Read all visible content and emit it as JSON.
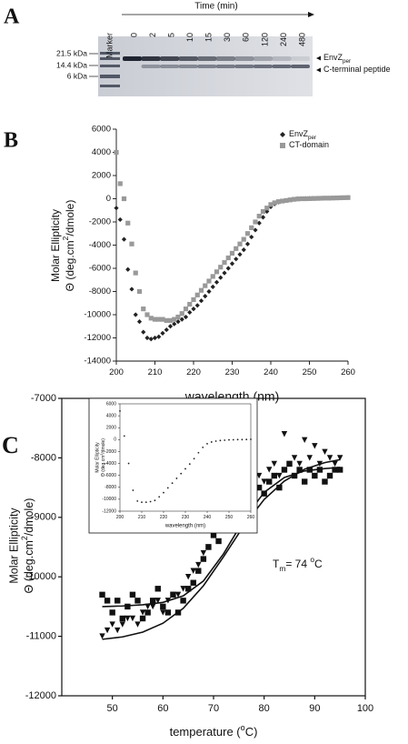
{
  "gel": {
    "panel_label": "A",
    "lane_header": "Marker",
    "time_label": "Time (min)",
    "lanes": [
      0,
      2,
      5,
      10,
      15,
      30,
      60,
      120,
      240,
      480
    ],
    "size_markers": [
      "21.5 kDa",
      "14.4 kDa",
      "6 kDa"
    ],
    "bands": [
      {
        "name": "EnvZ",
        "name_sub": "per"
      },
      {
        "name": "C-terminal peptide"
      }
    ]
  },
  "chart_data": [
    {
      "type": "scatter",
      "panel_label": "B",
      "x": [
        200,
        201,
        202,
        203,
        204,
        205,
        206,
        207,
        208,
        209,
        210,
        211,
        212,
        213,
        214,
        215,
        216,
        217,
        218,
        219,
        220,
        221,
        222,
        223,
        224,
        225,
        226,
        227,
        228,
        229,
        230,
        231,
        232,
        233,
        234,
        235,
        236,
        237,
        238,
        239,
        240,
        241,
        242,
        243,
        244,
        245,
        246,
        247,
        248,
        249,
        250,
        251,
        252,
        253,
        254,
        255,
        256,
        257,
        258,
        259,
        260
      ],
      "series": [
        {
          "name": "EnvZ",
          "name_sub": "per",
          "color": "#222222",
          "marker": "diamond",
          "values": [
            -800,
            -1800,
            -3500,
            -6100,
            -7800,
            -10000,
            -10600,
            -11500,
            -12000,
            -12100,
            -12000,
            -11900,
            -11600,
            -11300,
            -11000,
            -10800,
            -10600,
            -10400,
            -10200,
            -9800,
            -9500,
            -9200,
            -8800,
            -8400,
            -8000,
            -7600,
            -7200,
            -6800,
            -6400,
            -6000,
            -5600,
            -5200,
            -4800,
            -4400,
            -3900,
            -3300,
            -2700,
            -2100,
            -1600,
            -1100,
            -700,
            -450,
            -300,
            -200,
            -150,
            -100,
            -50,
            0,
            0,
            20,
            30,
            40,
            50,
            50,
            60,
            60,
            70,
            80,
            80,
            90,
            100
          ]
        },
        {
          "name": "CT-domain",
          "color": "#999999",
          "marker": "square",
          "values": [
            4000,
            1300,
            0,
            -2100,
            -3900,
            -6400,
            -8000,
            -9500,
            -10000,
            -10300,
            -10400,
            -10400,
            -10400,
            -10500,
            -10500,
            -10400,
            -10200,
            -9900,
            -9500,
            -9100,
            -8700,
            -8300,
            -7900,
            -7500,
            -7100,
            -6700,
            -6300,
            -5900,
            -5500,
            -5100,
            -4700,
            -4300,
            -3900,
            -3500,
            -3000,
            -2500,
            -2000,
            -1500,
            -1100,
            -800,
            -500,
            -350,
            -250,
            -200,
            -150,
            -100,
            -50,
            -20,
            0,
            0,
            10,
            20,
            30,
            40,
            50,
            50,
            60,
            70,
            80,
            90,
            100
          ]
        }
      ],
      "xlabel": "wavelength (nm)",
      "ylabel": {
        "line1": "Molar Ellipticity",
        "line2": "Θ (deg.cm",
        "sup": "2",
        "line2_end": "/dmole)"
      },
      "xlim": [
        200,
        260
      ],
      "ylim": [
        -14000,
        6000
      ],
      "xticks": [
        200,
        210,
        220,
        230,
        240,
        250,
        260
      ],
      "yticks": [
        -14000,
        -12000,
        -10000,
        -8000,
        -6000,
        -4000,
        -2000,
        0,
        2000,
        4000,
        6000
      ],
      "legend": "upper right"
    },
    {
      "type": "scatter",
      "panel_label": "C",
      "x": [
        48,
        49,
        50,
        51,
        52,
        53,
        54,
        55,
        56,
        57,
        58,
        59,
        60,
        61,
        62,
        63,
        64,
        65,
        66,
        67,
        68,
        69,
        70,
        71,
        72,
        73,
        74,
        75,
        76,
        77,
        78,
        79,
        80,
        81,
        82,
        83,
        84,
        85,
        86,
        87,
        88,
        89,
        90,
        91,
        92,
        93,
        94,
        95
      ],
      "series": [
        {
          "color": "#111111",
          "marker": "square",
          "values": [
            -10300,
            -10400,
            -10600,
            -10400,
            -10700,
            -10500,
            -10300,
            -10400,
            -10700,
            -10600,
            -10400,
            -10200,
            -10500,
            -10600,
            -10300,
            -10600,
            -10400,
            -10200,
            -10100,
            -9900,
            -9700,
            -9500,
            -9300,
            -9400,
            -9100,
            -9200,
            -8900,
            -9000,
            -8800,
            -8700,
            -8900,
            -8500,
            -8600,
            -8400,
            -8300,
            -8500,
            -8200,
            -8100,
            -8300,
            -8200,
            -8400,
            -8200,
            -8300,
            -8200,
            -8400,
            -8300,
            -8200,
            -8200
          ]
        },
        {
          "color": "#111111",
          "marker": "triangle-down",
          "values": [
            -11000,
            -10900,
            -10800,
            -10900,
            -10800,
            -10700,
            -10700,
            -10800,
            -10600,
            -10500,
            -10500,
            -10400,
            -10600,
            -10400,
            -10300,
            -10300,
            -10200,
            -10000,
            -9900,
            -9800,
            -9600,
            -9500,
            -9300,
            -9200,
            -9000,
            -8900,
            -9100,
            -8700,
            -8800,
            -8600,
            -8500,
            -8300,
            -8400,
            -8200,
            -8100,
            -8300,
            -7600,
            -8100,
            -8000,
            -8100,
            -7700,
            -8000,
            -7800,
            -8100,
            -7900,
            -8000,
            -8100,
            -8000
          ]
        },
        {
          "color": "#111111",
          "style": "line",
          "x": [
            48,
            52,
            56,
            60,
            64,
            68,
            72,
            76,
            80,
            84,
            88,
            92,
            95
          ],
          "values": [
            -10500,
            -10490,
            -10470,
            -10430,
            -10320,
            -10070,
            -9610,
            -9040,
            -8580,
            -8330,
            -8220,
            -8180,
            -8160
          ]
        },
        {
          "color": "#111111",
          "style": "line",
          "x": [
            48,
            52,
            56,
            60,
            64,
            68,
            72,
            76,
            80,
            84,
            88,
            92,
            95
          ],
          "values": [
            -11050,
            -11010,
            -10930,
            -10780,
            -10530,
            -10150,
            -9660,
            -9140,
            -8700,
            -8390,
            -8190,
            -8080,
            -8030
          ]
        }
      ],
      "xlabel": {
        "text": "temperature (",
        "sup": "o",
        "end": "C)"
      },
      "ylabel": {
        "line1": "Molar Ellipticity",
        "line2": "Θ (deg.cm",
        "sup": "2",
        "line2_end": "/dmole)"
      },
      "annotation": {
        "text": "T",
        "sub": "m",
        "rest": "= 74 ",
        "sup": "o",
        "end": "C"
      },
      "xlim": [
        40,
        100
      ],
      "ylim": [
        -12000,
        -7000
      ],
      "xticks": [
        50,
        60,
        70,
        80,
        90,
        100
      ],
      "yticks": [
        -12000,
        -11000,
        -10000,
        -9000,
        -8000,
        -7000
      ],
      "inset": {
        "type": "scatter",
        "x": [
          200,
          202,
          204,
          206,
          208,
          210,
          212,
          214,
          216,
          218,
          220,
          222,
          224,
          226,
          228,
          230,
          232,
          234,
          236,
          238,
          240,
          242,
          244,
          246,
          248,
          250,
          252,
          254,
          256,
          258,
          260
        ],
        "series": [
          {
            "color": "#222222",
            "marker": "dot",
            "values": [
              4800,
              600,
              -4000,
              -8500,
              -10300,
              -10500,
              -10500,
              -10400,
              -10200,
              -9600,
              -8900,
              -8100,
              -7300,
              -6500,
              -5700,
              -4900,
              -4100,
              -3200,
              -2200,
              -1300,
              -700,
              -400,
              -250,
              -150,
              -100,
              -50,
              -20,
              0,
              0,
              20,
              50
            ]
          }
        ],
        "xlabel": "wavelength (nm)",
        "ylabel": {
          "line1": "Molar Ellipticity",
          "line2": "Θ (deg.cm",
          "sup": "2",
          "line2_end": "/dmole)"
        },
        "xlim": [
          200,
          260
        ],
        "ylim": [
          -12000,
          6000
        ],
        "xticks": [
          200,
          210,
          220,
          230,
          240,
          250,
          260
        ],
        "yticks": [
          -12000,
          -10000,
          -8000,
          -6000,
          -4000,
          -2000,
          0,
          2000,
          4000,
          6000
        ]
      }
    }
  ]
}
